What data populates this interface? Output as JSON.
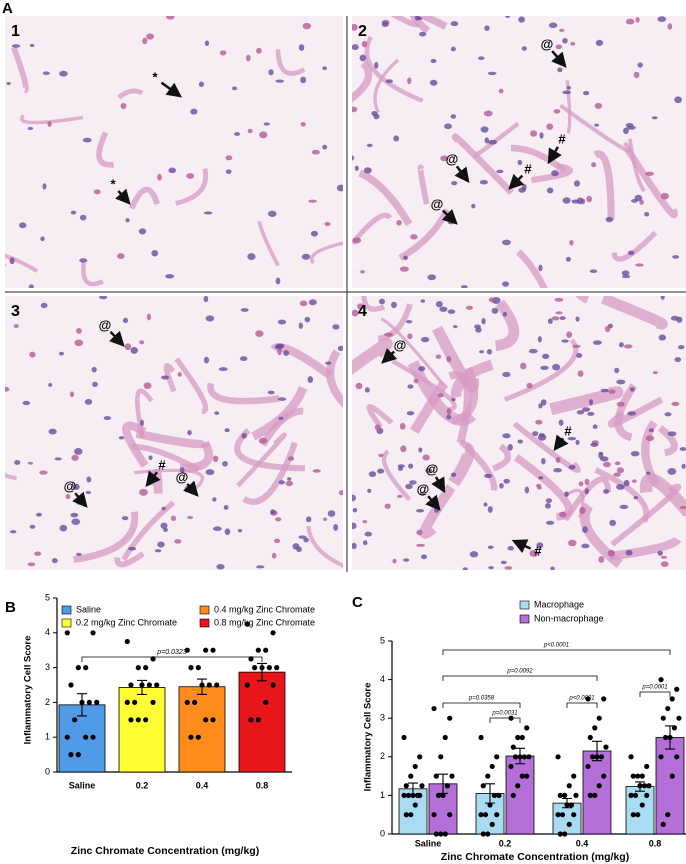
{
  "figure": {
    "panel_labels": [
      "A",
      "B",
      "C"
    ]
  },
  "images": [
    {
      "label": "1",
      "annotations": [
        "*",
        "*"
      ]
    },
    {
      "label": "2",
      "annotations": [
        "@",
        "#",
        "@",
        "#",
        "@"
      ]
    },
    {
      "label": "3",
      "annotations": [
        "@",
        "#",
        "@",
        "@"
      ]
    },
    {
      "label": "4",
      "annotations": [
        "@",
        "#",
        "@",
        "@",
        "#"
      ]
    }
  ],
  "chart_data": [
    {
      "type": "bar",
      "legend": [
        "Saline",
        "0.2 mg/kg Zinc Chromate",
        "0.4 mg/kg Zinc Chromate",
        "0.8 mg/kg Zinc Chromate"
      ],
      "colors": [
        "#4f9be8",
        "#ffff33",
        "#ff8c1a",
        "#e8151b"
      ],
      "categories": [
        "Saline",
        "0.2",
        "0.4",
        "0.8"
      ],
      "values": [
        1.93,
        2.43,
        2.45,
        2.87
      ],
      "errors": [
        0.32,
        0.2,
        0.22,
        0.25
      ],
      "points": [
        [
          4,
          4,
          3,
          3,
          2.5,
          2,
          2,
          2,
          1.5,
          1,
          1,
          1,
          0.5,
          0.5
        ],
        [
          3.75,
          3.25,
          3,
          3,
          2.5,
          2.5,
          2.5,
          2.5,
          2,
          2,
          2,
          1.5,
          1.5,
          1.5
        ],
        [
          3.5,
          3.5,
          3.5,
          3,
          3,
          2.5,
          2.5,
          2.5,
          2,
          2,
          1.5,
          1.5,
          1,
          1
        ],
        [
          4.25,
          4,
          3.5,
          3.5,
          3.25,
          3,
          3,
          3,
          3,
          2.5,
          2.5,
          2,
          1.5,
          1.5
        ]
      ],
      "comparisons": [
        {
          "label": "p=0.0323",
          "between": [
            0,
            3
          ]
        }
      ],
      "xlabel": "Zinc Chromate Concentration (mg/kg)",
      "ylabel": "Inflammatory Cell Score",
      "ylim": [
        0,
        5
      ],
      "yticks": [
        0,
        1,
        2,
        3,
        4,
        5
      ]
    },
    {
      "type": "bar",
      "categories": [
        "Saline",
        "0.2",
        "0.4",
        "0.8"
      ],
      "series": [
        {
          "name": "Macrophage",
          "color": "#a9dcf3",
          "values": [
            1.17,
            1.05,
            0.8,
            1.23
          ],
          "errors": [
            0.15,
            0.25,
            0.12,
            0.12
          ],
          "points": [
            [
              2.5,
              2,
              1.75,
              1.5,
              1.25,
              1.25,
              1,
              1,
              1,
              1,
              1,
              0.75,
              0.5,
              0.5
            ],
            [
              2.5,
              2,
              1.75,
              1.5,
              1.25,
              1,
              1,
              0.75,
              0.5,
              0.5,
              0.5,
              0.25,
              0,
              0
            ],
            [
              2,
              1.5,
              1.25,
              1,
              1,
              1,
              0.75,
              0.75,
              0.5,
              0.5,
              0.5,
              0.25,
              0,
              0
            ],
            [
              2,
              1.75,
              1.5,
              1.5,
              1.5,
              1.25,
              1.25,
              1.25,
              1,
              1,
              1,
              0.75,
              0.5,
              0.5
            ]
          ]
        },
        {
          "name": "Non-macrophage",
          "color": "#b56fd8",
          "values": [
            1.3,
            2.02,
            2.15,
            2.5
          ],
          "errors": [
            0.25,
            0.2,
            0.25,
            0.3
          ],
          "points": [
            [
              3.25,
              3,
              2.5,
              2,
              1.5,
              1.5,
              1.25,
              1,
              1,
              0.5,
              0.5,
              0,
              0,
              0
            ],
            [
              3,
              2.75,
              2.5,
              2.5,
              2.25,
              2,
              2,
              2,
              2,
              1.75,
              1.5,
              1.5,
              1.25,
              1
            ],
            [
              3.5,
              3.5,
              3,
              2.75,
              2.5,
              2.25,
              2,
              2,
              2,
              1.75,
              1.5,
              1.25,
              1,
              1
            ],
            [
              4,
              3.75,
              3.5,
              3.25,
              3,
              3,
              2.75,
              2.5,
              2.5,
              2,
              2,
              1.5,
              0.5,
              0.25
            ]
          ]
        }
      ],
      "comparisons": [
        {
          "label": "p=0.0358",
          "between": [
            [
              1,
              0
            ],
            [
              1,
              1
            ]
          ]
        },
        {
          "label": "p=0.0031",
          "between": [
            [
              0,
              1
            ],
            [
              1,
              1
            ]
          ]
        },
        {
          "label": "p=0.0092",
          "between": [
            [
              1,
              0
            ],
            [
              1,
              2
            ]
          ]
        },
        {
          "label": "p<0.0001",
          "between": [
            [
              0,
              2
            ],
            [
              1,
              2
            ]
          ]
        },
        {
          "label": "p<0.0001",
          "between": [
            [
              1,
              0
            ],
            [
              1,
              3
            ]
          ]
        },
        {
          "label": "p=0.0001",
          "between": [
            [
              0,
              3
            ],
            [
              1,
              3
            ]
          ]
        }
      ],
      "xlabel": "Zinc Chromate Concentration (mg/kg)",
      "ylabel": "Inflammatory Cell Score",
      "ylim": [
        0,
        5
      ],
      "yticks": [
        0,
        1,
        2,
        3,
        4,
        5
      ]
    }
  ]
}
